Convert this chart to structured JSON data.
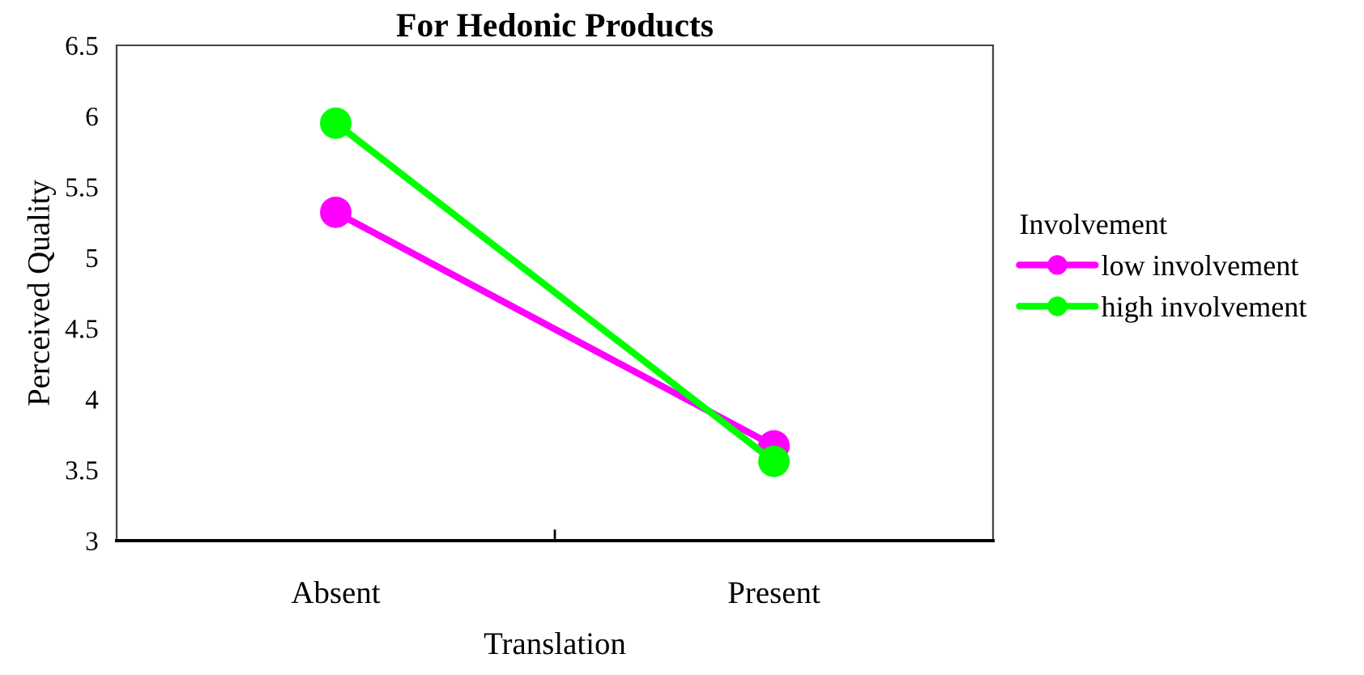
{
  "chart_data": {
    "type": "line",
    "title": "For Hedonic Products",
    "xlabel": "Translation",
    "ylabel": "Perceived Quality",
    "legend_title": "Involvement",
    "categories": [
      "Absent",
      "Present"
    ],
    "series": [
      {
        "name": "low involvement",
        "color": "#ff00ff",
        "values": [
          5.32,
          3.67
        ]
      },
      {
        "name": "high involvement",
        "color": "#00ff00",
        "values": [
          5.95,
          3.56
        ]
      }
    ],
    "ylim": [
      3,
      6.5
    ],
    "yticks": [
      3,
      3.5,
      4,
      4.5,
      5,
      5.5,
      6,
      6.5
    ],
    "grid": false,
    "legend": "right",
    "marker": "circle",
    "line_style": "solid"
  }
}
